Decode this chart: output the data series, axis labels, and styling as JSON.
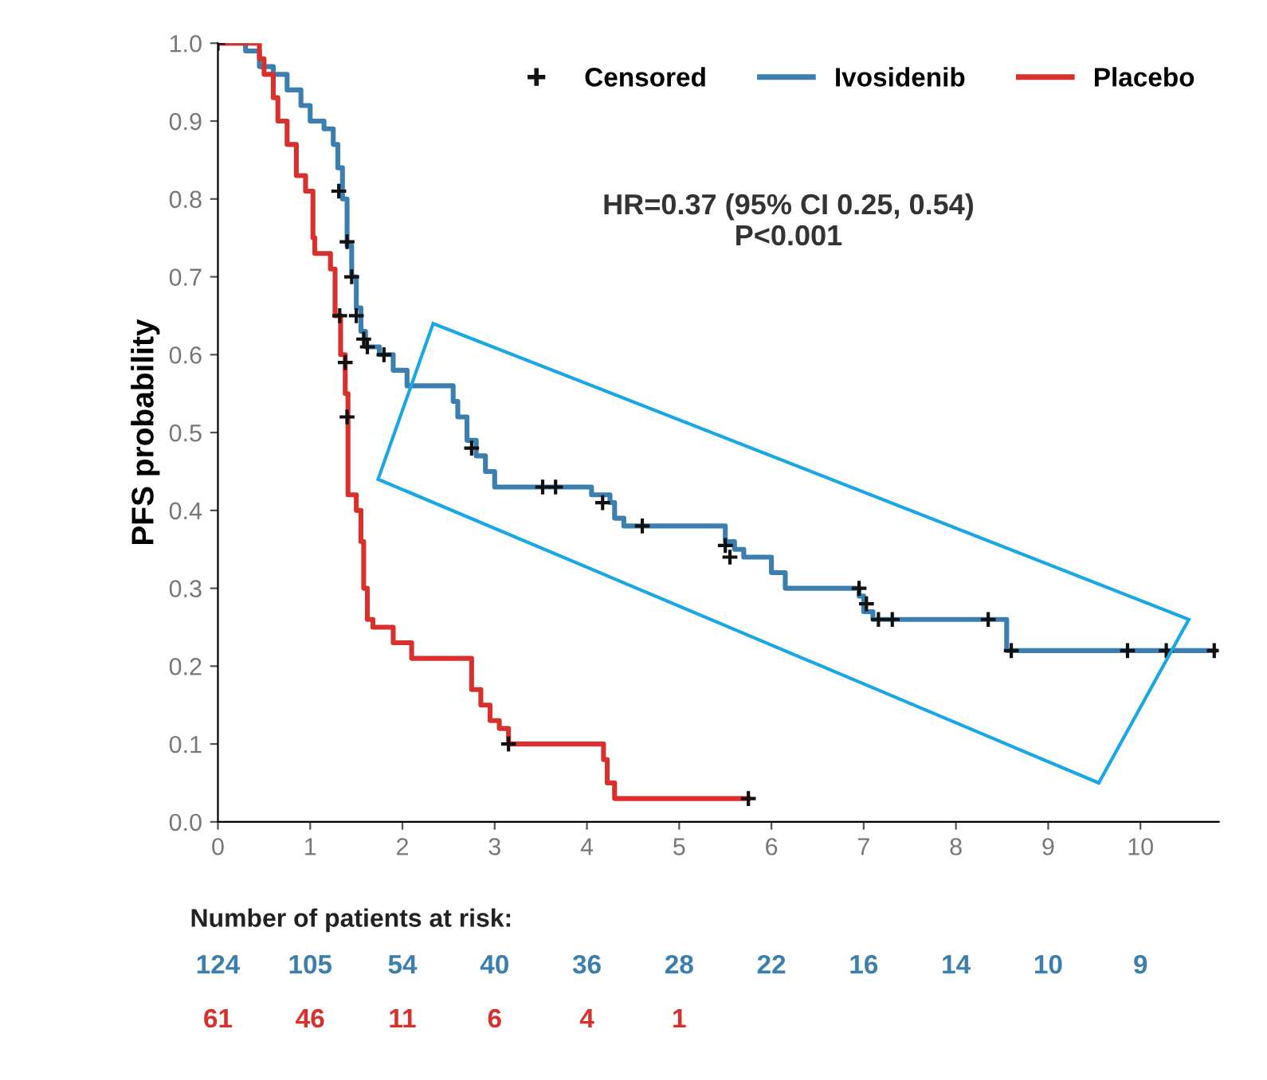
{
  "chart_data": {
    "type": "step",
    "ylabel": "PFS probability",
    "xlim": [
      0,
      10.85
    ],
    "ylim": [
      0,
      1.0
    ],
    "xticks": [
      0,
      1,
      2,
      3,
      4,
      5,
      6,
      7,
      8,
      9,
      10
    ],
    "yticks": [
      {
        "value": 0,
        "label": "0.0"
      },
      0.1,
      0.2,
      0.3,
      0.4,
      0.5,
      0.6,
      0.7,
      0.8,
      0.9,
      {
        "value": 1,
        "label": "1.0"
      }
    ],
    "grid": false,
    "legend": "top right",
    "line_style": "solid",
    "annotations": [
      "HR=0.37 (95% CI 0.25, 0.54)\nP<0.001",
      "Number of patients at risk:",
      "124 105 54 40 36 28 22 16 14 10 9",
      "61 46 11 6 4 1"
    ],
    "series": [
      {
        "name": "Censored",
        "type": "scatter",
        "marker": "cross",
        "color": "#111111",
        "x": [
          0,
          1.31,
          1.4,
          1.45,
          1.5,
          1.58,
          1.62,
          1.8,
          2.75,
          3.52,
          3.66,
          4.17,
          4.6,
          5.5,
          5.55,
          6.95,
          7.03,
          7.16,
          7.31,
          8.35,
          8.6,
          9.86,
          10.28,
          10.8,
          1.32,
          1.38,
          1.4,
          3.15,
          5.75
        ],
        "values": [
          1.0,
          0.81,
          0.745,
          0.7,
          0.65,
          0.62,
          0.61,
          0.6,
          0.48,
          0.43,
          0.43,
          0.41,
          0.38,
          0.355,
          0.34,
          0.3,
          0.28,
          0.26,
          0.26,
          0.26,
          0.22,
          0.22,
          0.22,
          0.22,
          0.65,
          0.59,
          0.52,
          0.1,
          0.03
        ]
      },
      {
        "name": "Ivosidenib",
        "color": "#3a7fb0",
        "x": [
          0,
          0.3,
          0.45,
          0.6,
          0.75,
          0.9,
          1.0,
          1.15,
          1.25,
          1.3,
          1.35,
          1.4,
          1.45,
          1.5,
          1.55,
          1.6,
          1.75,
          1.9,
          2.05,
          2.55,
          2.6,
          2.7,
          2.8,
          2.9,
          3.0,
          4.05,
          4.25,
          4.3,
          4.4,
          5.5,
          5.6,
          5.7,
          6.0,
          6.15,
          6.95,
          7.0,
          7.1,
          8.55,
          10.8
        ],
        "values": [
          1.0,
          0.99,
          0.97,
          0.96,
          0.94,
          0.92,
          0.9,
          0.89,
          0.87,
          0.84,
          0.8,
          0.74,
          0.7,
          0.66,
          0.63,
          0.61,
          0.6,
          0.58,
          0.56,
          0.54,
          0.52,
          0.49,
          0.47,
          0.45,
          0.43,
          0.42,
          0.41,
          0.39,
          0.38,
          0.36,
          0.35,
          0.34,
          0.32,
          0.3,
          0.29,
          0.27,
          0.26,
          0.22,
          0.22
        ]
      },
      {
        "name": "Placebo",
        "color": "#d8302c",
        "x": [
          0,
          0.45,
          0.5,
          0.6,
          0.65,
          0.75,
          0.85,
          0.95,
          1.03,
          1.05,
          1.22,
          1.27,
          1.33,
          1.38,
          1.41,
          1.5,
          1.55,
          1.58,
          1.62,
          1.68,
          1.9,
          2.1,
          2.75,
          2.85,
          2.95,
          3.05,
          3.15,
          4.18,
          4.22,
          4.3,
          5.75
        ],
        "values": [
          1.0,
          0.98,
          0.96,
          0.93,
          0.9,
          0.87,
          0.83,
          0.81,
          0.75,
          0.73,
          0.71,
          0.65,
          0.6,
          0.55,
          0.42,
          0.4,
          0.36,
          0.3,
          0.26,
          0.25,
          0.23,
          0.21,
          0.17,
          0.15,
          0.13,
          0.12,
          0.1,
          0.08,
          0.05,
          0.03,
          0.03
        ]
      }
    ]
  }
}
